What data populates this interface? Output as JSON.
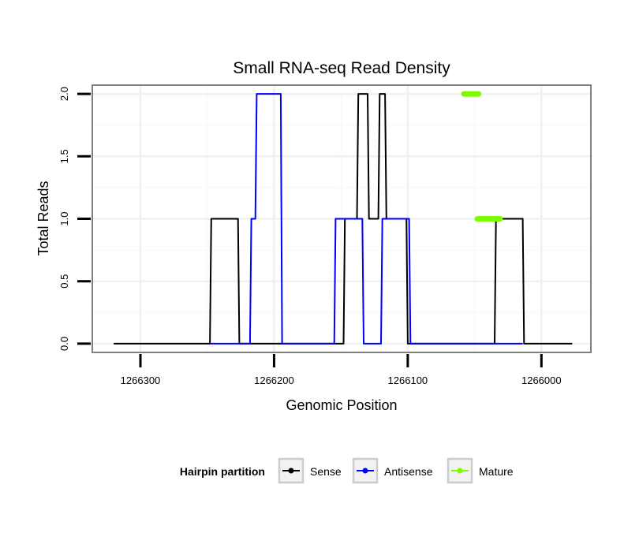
{
  "chart_data": {
    "type": "line",
    "title": "Small RNA-seq Read Density",
    "xlabel": "Genomic Position",
    "ylabel": "Total Reads",
    "xlim": [
      1266336,
      1265963
    ],
    "ylim": [
      -0.07,
      2.07
    ],
    "x_ticks": [
      1266300,
      1266200,
      1266100,
      1266000
    ],
    "x_tick_labels": [
      "1266300",
      "1266200",
      "1266100",
      "1266000"
    ],
    "y_ticks": [
      0.0,
      0.5,
      1.0,
      1.5,
      2.0
    ],
    "y_tick_labels": [
      "0.0",
      "0.5",
      "1.0",
      "1.5",
      "2.0"
    ],
    "grid": true,
    "legend": {
      "title": "Hairpin partition",
      "position": "bottom",
      "entries": [
        "Sense",
        "Antisense",
        "Mature"
      ]
    },
    "series": [
      {
        "name": "Sense",
        "color": "#000000",
        "x": [
          1266320,
          1266248,
          1266247,
          1266227,
          1266226,
          1266148,
          1266147,
          1266138,
          1266137,
          1266130,
          1266129,
          1266122,
          1266121,
          1266117,
          1266116,
          1266101,
          1266100,
          1266035,
          1266034,
          1266014,
          1266013,
          1265977
        ],
        "y": [
          0,
          0,
          1,
          1,
          0,
          0,
          1,
          1,
          2,
          2,
          1,
          1,
          2,
          2,
          1,
          1,
          0,
          0,
          1,
          1,
          0,
          0
        ]
      },
      {
        "name": "Antisense",
        "color": "#0000ff",
        "x": [
          1266248,
          1266218,
          1266217,
          1266214,
          1266213,
          1266195,
          1266194,
          1266155,
          1266154,
          1266134,
          1266133,
          1266120,
          1266119,
          1266099,
          1266098,
          1266050,
          1266049,
          1266014
        ],
        "y": [
          0,
          0,
          1,
          1,
          2,
          2,
          0,
          0,
          1,
          1,
          0,
          0,
          1,
          1,
          0,
          0,
          0,
          0
        ]
      },
      {
        "name": "Mature",
        "color": "#7cfc00",
        "segments": [
          {
            "x": [
              1266058,
              1266047
            ],
            "y": [
              2,
              2
            ]
          },
          {
            "x": [
              1266048,
              1266031
            ],
            "y": [
              1,
              1
            ]
          }
        ]
      }
    ]
  }
}
